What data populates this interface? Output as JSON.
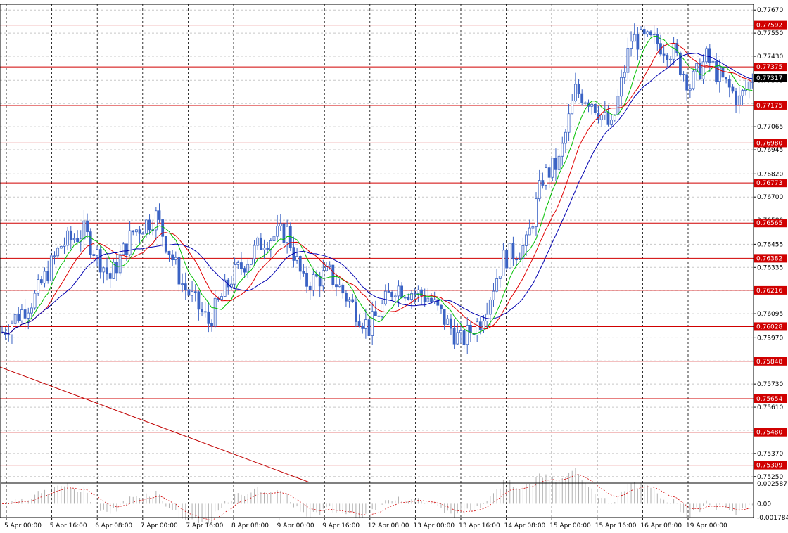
{
  "chart_data": {
    "type": "candlestick",
    "title": "",
    "xlabel": "",
    "ylabel": "",
    "ylim": [
      0.7522,
      0.777
    ],
    "indicator_ylim": [
      -0.001784,
      0.002587
    ],
    "grid": true,
    "y_ticks": [
      "0.77670",
      "0.77550",
      "0.77430",
      "0.77305",
      "0.77185",
      "0.77065",
      "0.76945",
      "0.76820",
      "0.76700",
      "0.76580",
      "0.76455",
      "0.76335",
      "0.76215",
      "0.76095",
      "0.75970",
      "0.75850",
      "0.75730",
      "0.75610",
      "0.75490",
      "0.75370",
      "0.75250"
    ],
    "x_ticks": [
      "5 Apr 00:00",
      "5 Apr 16:00",
      "6 Apr 08:00",
      "7 Apr 00:00",
      "7 Apr 16:00",
      "8 Apr 08:00",
      "9 Apr 00:00",
      "9 Apr 16:00",
      "12 Apr 08:00",
      "13 Apr 00:00",
      "13 Apr 16:00",
      "14 Apr 08:00",
      "15 Apr 00:00",
      "15 Apr 16:00",
      "16 Apr 08:00",
      "19 Apr 00:00"
    ],
    "indicator_ticks": [
      "0.002587",
      "0.00",
      "-0.001784"
    ],
    "levels": [
      "0.77592",
      "0.77375",
      "0.77175",
      "0.76980",
      "0.76773",
      "0.76565",
      "0.76382",
      "0.76216",
      "0.76028",
      "0.75848",
      "0.75654",
      "0.75480",
      "0.75309"
    ],
    "current_price": "0.77317",
    "price_path": [
      {
        "i": 0,
        "v": 0.76
      },
      {
        "i": 10,
        "v": 0.7618
      },
      {
        "i": 18,
        "v": 0.7645
      },
      {
        "i": 25,
        "v": 0.7652
      },
      {
        "i": 33,
        "v": 0.7628
      },
      {
        "i": 40,
        "v": 0.7652
      },
      {
        "i": 47,
        "v": 0.766
      },
      {
        "i": 55,
        "v": 0.7625
      },
      {
        "i": 63,
        "v": 0.7605
      },
      {
        "i": 70,
        "v": 0.7628
      },
      {
        "i": 80,
        "v": 0.7648
      },
      {
        "i": 87,
        "v": 0.7652
      },
      {
        "i": 92,
        "v": 0.7625
      },
      {
        "i": 100,
        "v": 0.763
      },
      {
        "i": 112,
        "v": 0.7602
      },
      {
        "i": 120,
        "v": 0.7624
      },
      {
        "i": 130,
        "v": 0.7618
      },
      {
        "i": 140,
        "v": 0.7595
      },
      {
        "i": 146,
        "v": 0.7606
      },
      {
        "i": 153,
        "v": 0.7638
      },
      {
        "i": 160,
        "v": 0.7645
      },
      {
        "i": 165,
        "v": 0.768
      },
      {
        "i": 170,
        "v": 0.7688
      },
      {
        "i": 175,
        "v": 0.7725
      },
      {
        "i": 180,
        "v": 0.772
      },
      {
        "i": 186,
        "v": 0.7705
      },
      {
        "i": 192,
        "v": 0.7752
      },
      {
        "i": 200,
        "v": 0.775
      },
      {
        "i": 205,
        "v": 0.7745
      },
      {
        "i": 210,
        "v": 0.7728
      },
      {
        "i": 215,
        "v": 0.7742
      },
      {
        "i": 220,
        "v": 0.773
      },
      {
        "i": 225,
        "v": 0.772
      },
      {
        "i": 229,
        "v": 0.7732
      }
    ]
  },
  "colors": {
    "up_candle": "#3a62c4",
    "down_candle": "#3a62c4",
    "fast_ma": "#00c000",
    "mid_ma": "#e00000",
    "slow_ma": "#0000b0",
    "level_line": "#d00000",
    "trend_line": "#c00000",
    "current_price_bg": "#000000"
  }
}
